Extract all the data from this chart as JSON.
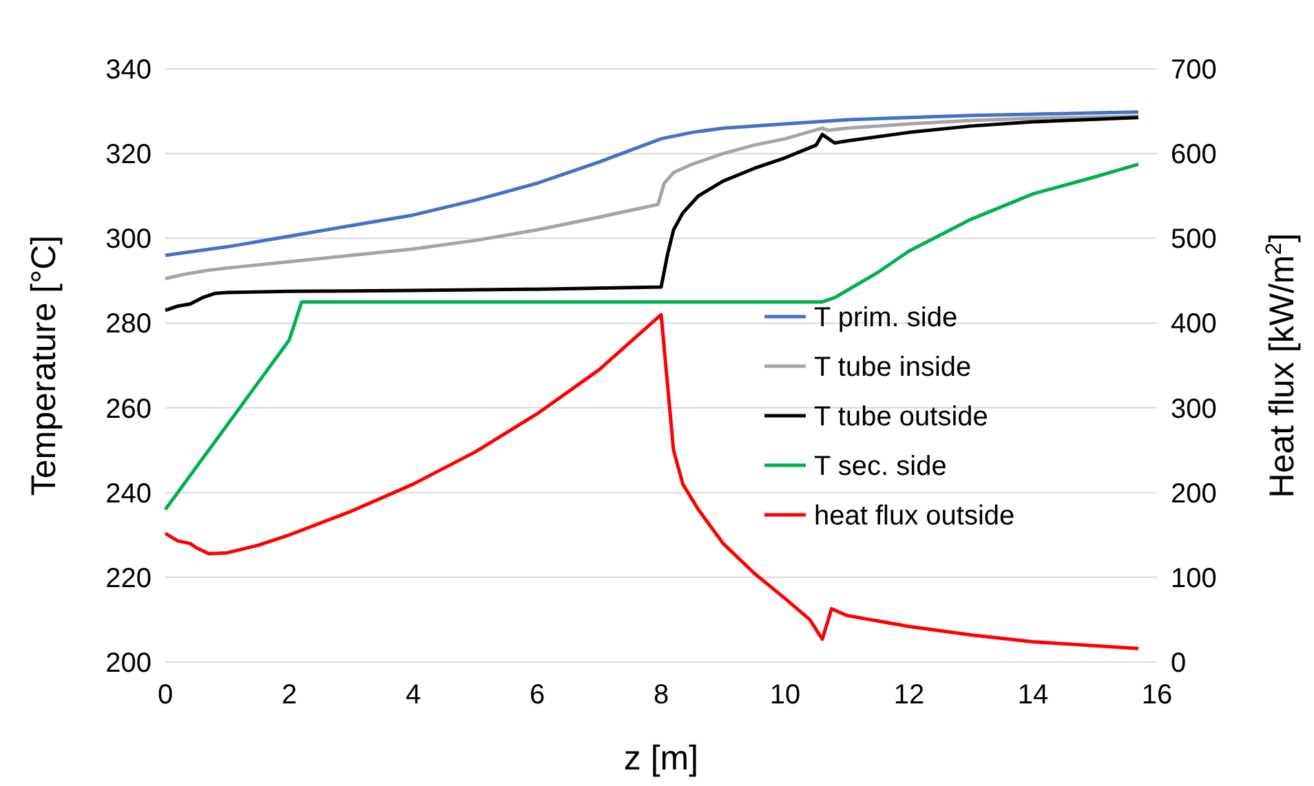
{
  "chart_data": {
    "type": "line",
    "xlabel": "z [m]",
    "ylabel": "Temperature [°C]",
    "y2label": "Heat flux [kW/m$^{2}$]",
    "xlim": [
      0,
      16
    ],
    "xticks": [
      0,
      2,
      4,
      6,
      8,
      10,
      12,
      14,
      16
    ],
    "ylim": [
      200,
      340
    ],
    "yticks": [
      200,
      220,
      240,
      260,
      280,
      300,
      320,
      340
    ],
    "y2lim": [
      0,
      700
    ],
    "y2ticks": [
      0,
      100,
      200,
      300,
      400,
      500,
      600,
      700
    ],
    "grid": "y",
    "legend": "right",
    "marker": "none",
    "line_style": "solid",
    "series": [
      {
        "name": "T prim. side",
        "color": "#4472c4",
        "x": [
          0,
          1,
          2,
          3,
          4,
          5,
          6,
          7,
          8,
          8.5,
          9,
          10,
          11,
          12,
          13,
          14,
          15,
          15.7
        ],
        "values": [
          296,
          298,
          300.5,
          303,
          305.5,
          309,
          313,
          318,
          323.5,
          325,
          326,
          327,
          328,
          328.5,
          329,
          329.3,
          329.6,
          329.8
        ]
      },
      {
        "name": "T tube inside",
        "color": "#a5a5a5",
        "x": [
          0,
          0.3,
          0.7,
          1,
          2,
          3,
          4,
          5,
          6,
          7,
          7.95,
          8.05,
          8.2,
          8.5,
          9,
          9.5,
          10,
          10.6,
          10.7,
          11,
          12,
          13,
          14,
          15.7
        ],
        "values": [
          290.5,
          291.5,
          292.5,
          293,
          294.5,
          296,
          297.5,
          299.5,
          302,
          305,
          308,
          313,
          315.5,
          317.5,
          320,
          322,
          323.5,
          326,
          325.5,
          326,
          327,
          327.8,
          328.3,
          328.8
        ]
      },
      {
        "name": "T tube outside",
        "color": "#000000",
        "x": [
          0,
          0.2,
          0.4,
          0.6,
          0.8,
          1,
          2,
          4,
          6,
          8,
          8.1,
          8.2,
          8.35,
          8.6,
          9,
          9.5,
          10,
          10.5,
          10.6,
          10.8,
          11,
          12,
          13,
          14,
          15.7
        ],
        "values": [
          283,
          284,
          284.5,
          286,
          287,
          287.2,
          287.5,
          287.7,
          288,
          288.5,
          296,
          302,
          306,
          310,
          313.5,
          316.5,
          319,
          322,
          324.5,
          322.5,
          323,
          325,
          326.5,
          327.5,
          328.5
        ]
      },
      {
        "name": "T sec. side",
        "color": "#00b050",
        "x": [
          0,
          0.5,
          1,
          1.5,
          2,
          2.2,
          10.6,
          10.8,
          11.5,
          12,
          13,
          14,
          15,
          15.7
        ],
        "values": [
          236,
          246,
          256,
          266,
          276,
          285,
          285,
          286,
          292,
          297,
          304.5,
          310.5,
          314.5,
          317.5
        ]
      },
      {
        "name": "heat flux outside",
        "color": "#ff0000",
        "axis": "y2",
        "x": [
          0,
          0.2,
          0.4,
          0.5,
          0.7,
          1,
          1.5,
          2,
          3,
          4,
          5,
          6,
          7,
          8,
          8.2,
          8.35,
          8.6,
          9,
          9.5,
          10,
          10.4,
          10.6,
          10.75,
          11,
          12,
          13,
          14,
          15.7
        ],
        "values": [
          152,
          143,
          140,
          135,
          128,
          129,
          138,
          150,
          178,
          210,
          248,
          293,
          345,
          410,
          250,
          210,
          180,
          140,
          105,
          75,
          50,
          27,
          63,
          55,
          42,
          32,
          24,
          16
        ]
      }
    ]
  }
}
